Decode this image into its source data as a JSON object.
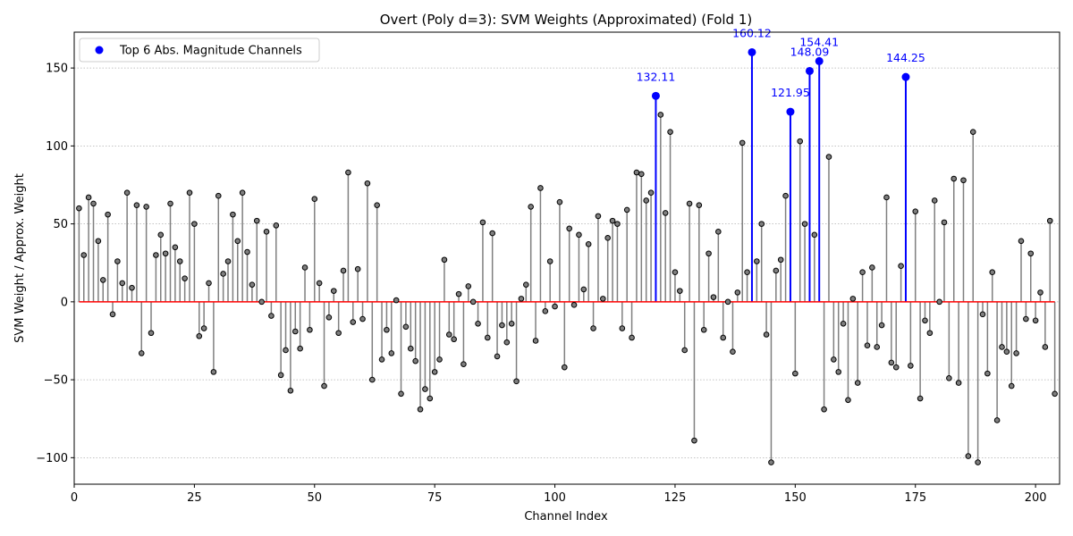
{
  "chart_data": {
    "type": "stem",
    "title": "Overt (Poly d=3): SVM Weights (Approximated) (Fold 1)",
    "xlabel": "Channel Index",
    "ylabel": "SVM Weight / Approx. Weight",
    "xlim": [
      0,
      205
    ],
    "ylim": [
      -117,
      173
    ],
    "xticks": [
      0,
      25,
      50,
      75,
      100,
      125,
      150,
      175,
      200
    ],
    "yticks": [
      -100,
      -50,
      0,
      50,
      100,
      150
    ],
    "ytick_labels": [
      "−100",
      "−50",
      "0",
      "50",
      "100",
      "150"
    ],
    "grid": "y-dotted",
    "legend": {
      "label": "Top 6 Abs. Magnitude Channels",
      "position": "upper-left"
    },
    "colors": {
      "stem": "#7f7f7f",
      "marker_face": "#7f7f7f",
      "marker_edge": "#000000",
      "baseline": "#ff0000",
      "highlight": "#0000ff"
    },
    "x": [
      1,
      2,
      3,
      4,
      5,
      6,
      7,
      8,
      9,
      10,
      11,
      12,
      13,
      14,
      15,
      16,
      17,
      18,
      19,
      20,
      21,
      22,
      23,
      24,
      25,
      26,
      27,
      28,
      29,
      30,
      31,
      32,
      33,
      34,
      35,
      36,
      37,
      38,
      39,
      40,
      41,
      42,
      43,
      44,
      45,
      46,
      47,
      48,
      49,
      50,
      51,
      52,
      53,
      54,
      55,
      56,
      57,
      58,
      59,
      60,
      61,
      62,
      63,
      64,
      65,
      66,
      67,
      68,
      69,
      70,
      71,
      72,
      73,
      74,
      75,
      76,
      77,
      78,
      79,
      80,
      81,
      82,
      83,
      84,
      85,
      86,
      87,
      88,
      89,
      90,
      91,
      92,
      93,
      94,
      95,
      96,
      97,
      98,
      99,
      100,
      101,
      102,
      103,
      104,
      105,
      106,
      107,
      108,
      109,
      110,
      111,
      112,
      113,
      114,
      115,
      116,
      117,
      118,
      119,
      120,
      121,
      122,
      123,
      124,
      125,
      126,
      127,
      128,
      129,
      130,
      131,
      132,
      133,
      134,
      135,
      136,
      137,
      138,
      139,
      140,
      141,
      142,
      143,
      144,
      145,
      146,
      147,
      148,
      149,
      150,
      151,
      152,
      153,
      154,
      155,
      156,
      157,
      158,
      159,
      160,
      161,
      162,
      163,
      164,
      165,
      166,
      167,
      168,
      169,
      170,
      171,
      172,
      173,
      174,
      175,
      176,
      177,
      178,
      179,
      180,
      181,
      182,
      183,
      184,
      185,
      186,
      187,
      188,
      189,
      190,
      191,
      192,
      193,
      194,
      195,
      196,
      197,
      198,
      199,
      200,
      201,
      202,
      203,
      204
    ],
    "values": [
      60,
      30,
      67,
      63,
      39,
      14,
      56,
      -8,
      26,
      12,
      70,
      9,
      62,
      -33,
      61,
      -20,
      30,
      43,
      31,
      63,
      35,
      26,
      15,
      70,
      50,
      -22,
      -17,
      12,
      -45,
      68,
      18,
      26,
      56,
      39,
      70,
      32,
      11,
      52,
      0,
      45,
      -9,
      49,
      -47,
      -31,
      -57,
      -19,
      -30,
      22,
      -18,
      66,
      12,
      -54,
      -10,
      7,
      -20,
      20,
      83,
      -13,
      21,
      -11,
      76,
      -50,
      62,
      -37,
      -18,
      -33,
      1,
      -59,
      -16,
      -30,
      -38,
      -69,
      -56,
      -62,
      -45,
      -37,
      27,
      -21,
      -24,
      5,
      -40,
      10,
      0,
      -14,
      51,
      -23,
      44,
      -35,
      -15,
      -26,
      -14,
      -51,
      2,
      11,
      61,
      -25,
      73,
      -6,
      26,
      -3,
      64,
      -42,
      47,
      -2,
      43,
      8,
      37,
      -17,
      55,
      2,
      41,
      52,
      50,
      -17,
      59,
      -23,
      83,
      82,
      65,
      70,
      132.11,
      120,
      57,
      109,
      19,
      7,
      -31,
      63,
      -89,
      62,
      -18,
      31,
      3,
      45,
      -23,
      0,
      -32,
      6,
      102,
      19,
      160.12,
      26,
      50,
      -21,
      -103,
      20,
      27,
      68,
      121.95,
      -46,
      103,
      50,
      148.09,
      43,
      154.41,
      -69,
      93,
      -37,
      -45,
      -14,
      -63,
      2,
      -52,
      19,
      -28,
      22,
      -29,
      -15,
      67,
      -39,
      -42,
      23,
      144.25,
      -41,
      58,
      -62,
      -12,
      -20,
      65,
      0,
      51,
      -49,
      79,
      -52,
      78,
      -99,
      109,
      -103,
      -8,
      -46,
      19,
      -76,
      -29,
      -32,
      -54,
      -33,
      39,
      -11,
      31,
      -12,
      6,
      -29,
      52,
      -59
    ],
    "top6_indices": [
      121,
      141,
      149,
      153,
      155,
      173
    ],
    "annotations": [
      {
        "x": 121,
        "label": "132.11"
      },
      {
        "x": 141,
        "label": "160.12"
      },
      {
        "x": 149,
        "label": "121.95"
      },
      {
        "x": 153,
        "label": "148.09"
      },
      {
        "x": 155,
        "label": "154.41"
      },
      {
        "x": 173,
        "label": "144.25"
      }
    ]
  }
}
